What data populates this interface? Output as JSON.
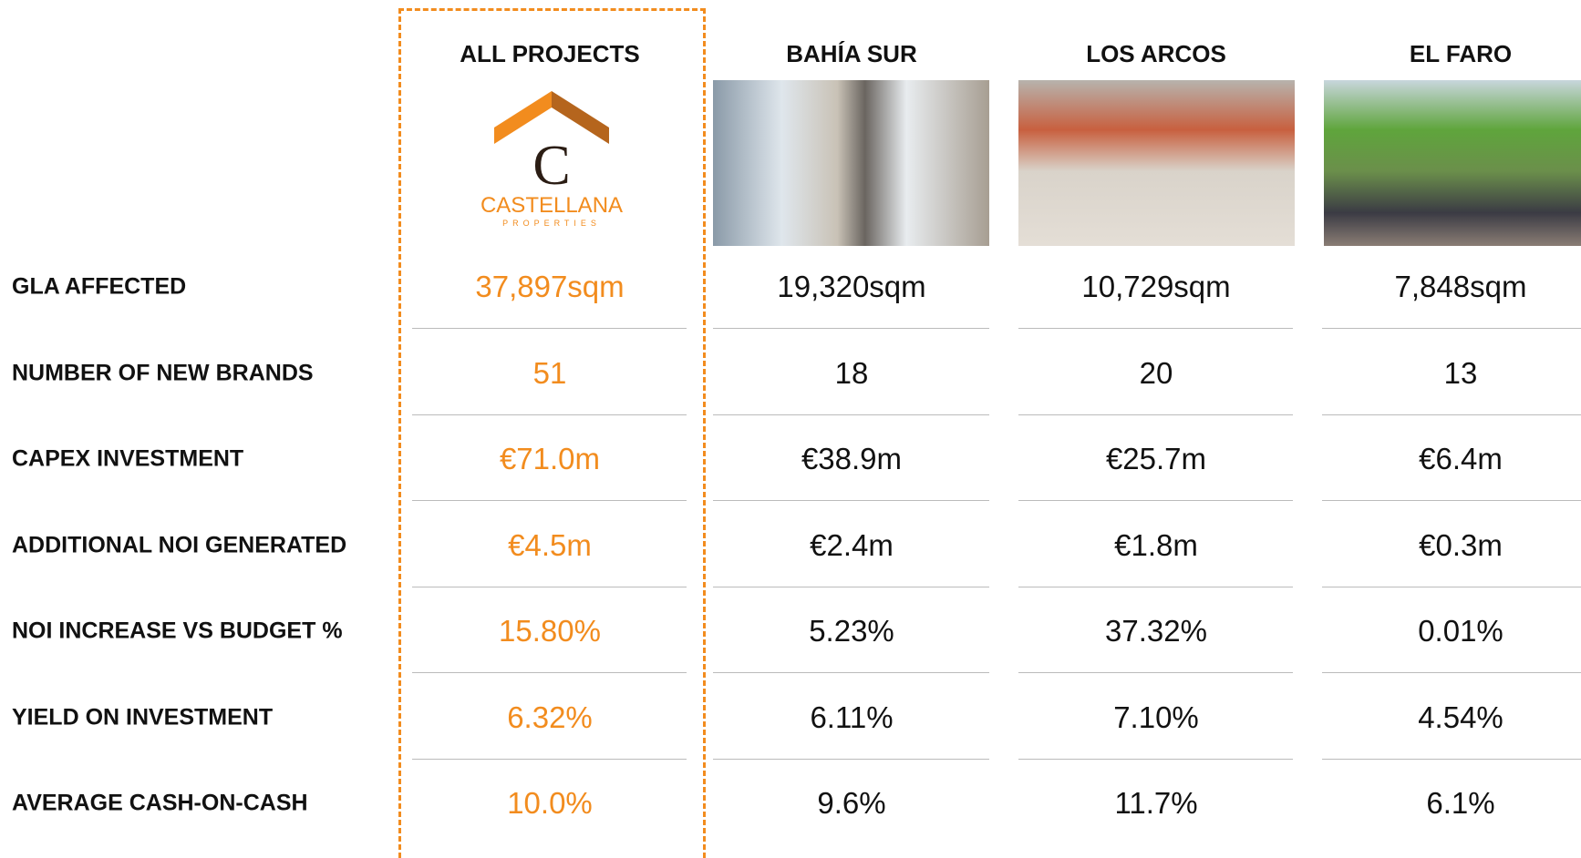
{
  "logo": {
    "letter": "C",
    "name": "CASTELLANA",
    "tagline": "PROPERTIES"
  },
  "table": {
    "columns": [
      "ALL PROJECTS",
      "BAHÍA SUR",
      "LOS ARCOS",
      "EL FARO"
    ],
    "rows": [
      {
        "label": "GLA AFFECTED",
        "values": [
          "37,897sqm",
          "19,320sqm",
          "10,729sqm",
          "7,848sqm"
        ]
      },
      {
        "label": "NUMBER OF NEW BRANDS",
        "values": [
          "51",
          "18",
          "20",
          "13"
        ]
      },
      {
        "label": "CAPEX INVESTMENT",
        "values": [
          "€71.0m",
          "€38.9m",
          "€25.7m",
          "€6.4m"
        ]
      },
      {
        "label": "ADDITIONAL NOI GENERATED",
        "values": [
          "€4.5m",
          "€2.4m",
          "€1.8m",
          "€0.3m"
        ]
      },
      {
        "label": "NOI INCREASE VS BUDGET %",
        "values": [
          "15.80%",
          "5.23%",
          "37.32%",
          "0.01%"
        ]
      },
      {
        "label": "YIELD ON INVESTMENT",
        "values": [
          "6.32%",
          "6.11%",
          "7.10%",
          "4.54%"
        ]
      },
      {
        "label": "AVERAGE CASH-ON-CASH",
        "values": [
          "10.0%",
          "9.6%",
          "11.7%",
          "6.1%"
        ]
      }
    ]
  }
}
